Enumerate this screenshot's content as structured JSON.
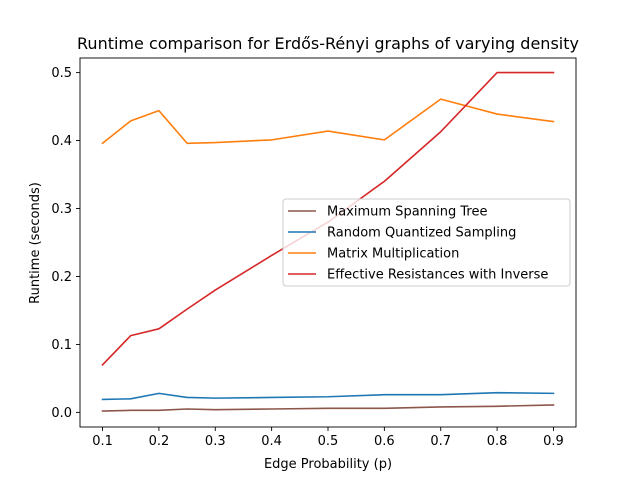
{
  "chart_data": {
    "type": "line",
    "title": "Runtime comparison for Erdős-Rényi graphs of varying density",
    "xlabel": "Edge Probability (p)",
    "ylabel": "Runtime (seconds)",
    "xlim": [
      0.06,
      0.94
    ],
    "ylim": [
      -0.0215,
      0.5215
    ],
    "x": [
      0.1,
      0.15,
      0.2,
      0.25,
      0.3,
      0.4,
      0.5,
      0.6,
      0.7,
      0.8,
      0.9
    ],
    "xticks": [
      0.1,
      0.2,
      0.3,
      0.4,
      0.5,
      0.6,
      0.7,
      0.8,
      0.9
    ],
    "xtick_labels": [
      "0.1",
      "0.2",
      "0.3",
      "0.4",
      "0.5",
      "0.6",
      "0.7",
      "0.8",
      "0.9"
    ],
    "yticks": [
      0.0,
      0.1,
      0.2,
      0.3,
      0.4,
      0.5
    ],
    "ytick_labels": [
      "0.0",
      "0.1",
      "0.2",
      "0.3",
      "0.4",
      "0.5"
    ],
    "grid": false,
    "legend_position": "center-right",
    "series": [
      {
        "name": "Maximum Spanning Tree",
        "color": "#8c564b",
        "values": [
          0.002,
          0.003,
          0.003,
          0.005,
          0.004,
          0.005,
          0.006,
          0.006,
          0.008,
          0.009,
          0.011
        ]
      },
      {
        "name": "Random Quantized Sampling",
        "color": "#1f77b4",
        "values": [
          0.019,
          0.02,
          0.028,
          0.022,
          0.021,
          0.022,
          0.023,
          0.026,
          0.026,
          0.029,
          0.028
        ]
      },
      {
        "name": "Matrix Multiplication",
        "color": "#ff7f0e",
        "values": [
          0.396,
          0.429,
          0.444,
          0.396,
          0.397,
          0.401,
          0.414,
          0.401,
          0.461,
          0.439,
          0.428
        ]
      },
      {
        "name": "Effective Resistances with Inverse",
        "color": "#d62728",
        "values": [
          0.07,
          0.113,
          0.123,
          0.152,
          0.18,
          0.231,
          0.28,
          0.34,
          0.413,
          0.5,
          0.5
        ]
      }
    ]
  }
}
